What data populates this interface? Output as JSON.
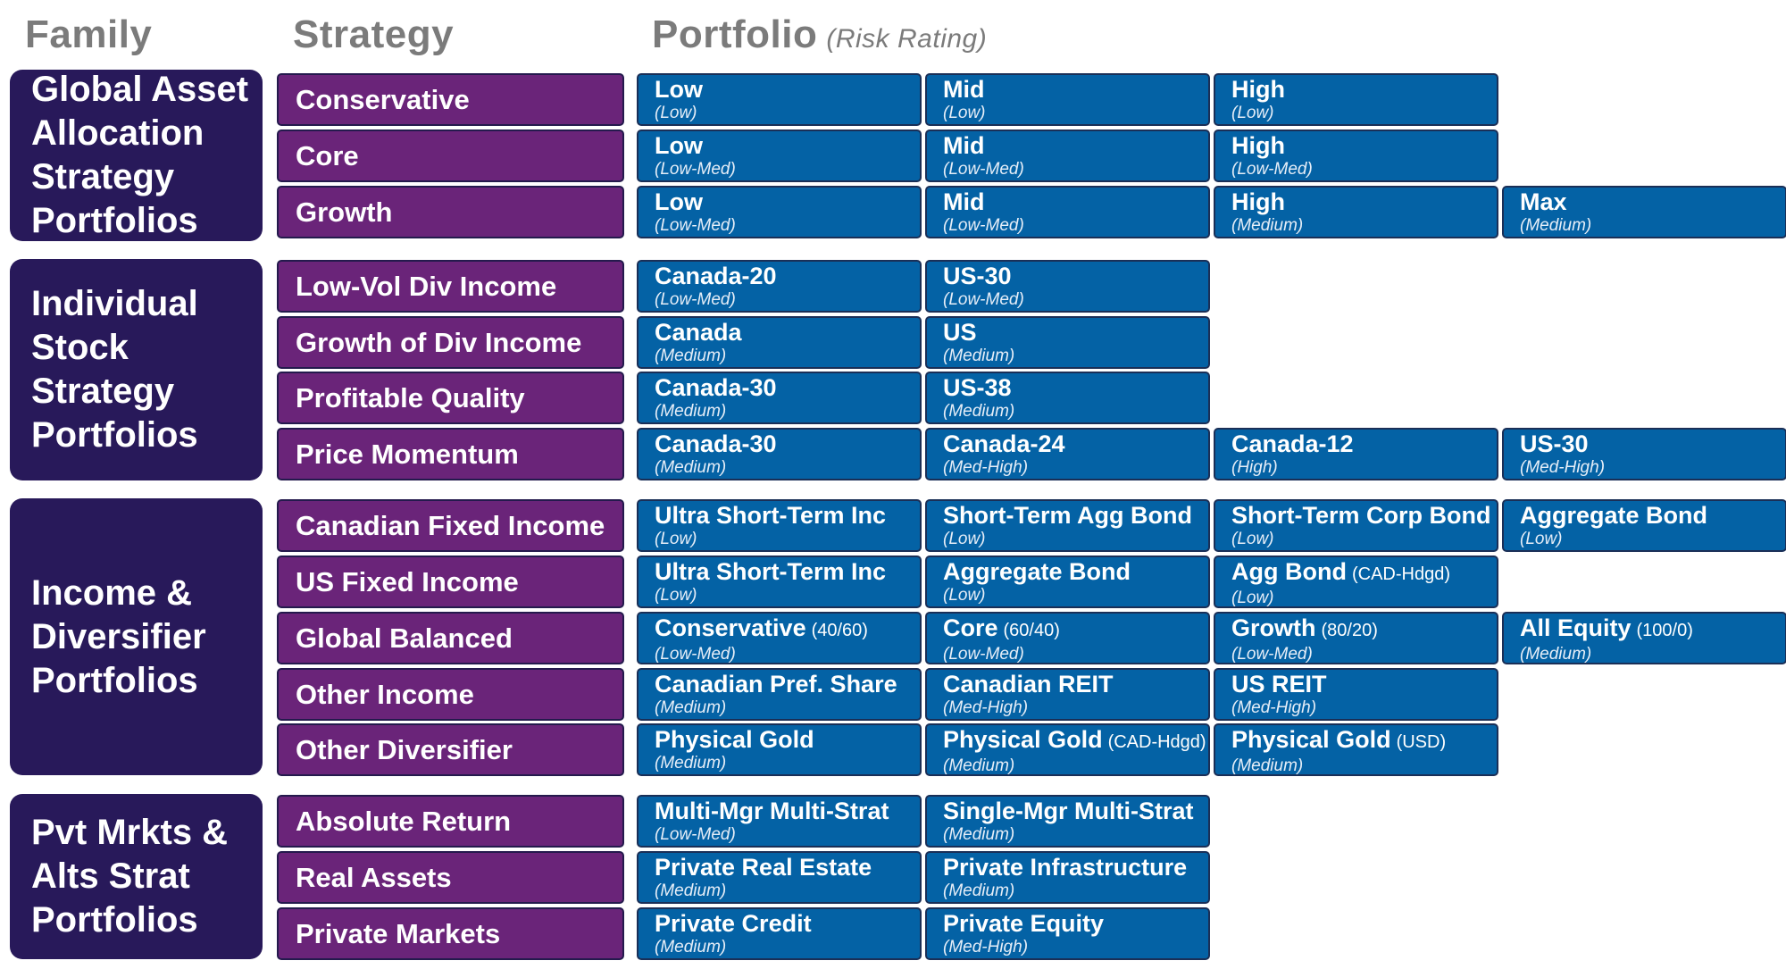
{
  "headers": {
    "family": "Family",
    "strategy": "Strategy",
    "portfolio": "Portfolio",
    "portfolio_sub": "(Risk Rating)"
  },
  "colors": {
    "family_bg": "#28195a",
    "strategy_bg": "#6a2479",
    "portfolio_bg": "#0462a5",
    "header_text": "#7b7b7b"
  },
  "families": [
    {
      "label": "Global Asset\nAllocation\nStrategy\nPortfolios",
      "strategies": [
        {
          "label": "Conservative",
          "portfolios": [
            {
              "name": "Low",
              "qual": "",
              "risk": "(Low)"
            },
            {
              "name": "Mid",
              "qual": "",
              "risk": "(Low)"
            },
            {
              "name": "High",
              "qual": "",
              "risk": "(Low)"
            }
          ]
        },
        {
          "label": "Core",
          "portfolios": [
            {
              "name": "Low",
              "qual": "",
              "risk": "(Low-Med)"
            },
            {
              "name": "Mid",
              "qual": "",
              "risk": "(Low-Med)"
            },
            {
              "name": "High",
              "qual": "",
              "risk": "(Low-Med)"
            }
          ]
        },
        {
          "label": "Growth",
          "portfolios": [
            {
              "name": "Low",
              "qual": "",
              "risk": "(Low-Med)"
            },
            {
              "name": "Mid",
              "qual": "",
              "risk": "(Low-Med)"
            },
            {
              "name": "High",
              "qual": "",
              "risk": "(Medium)"
            },
            {
              "name": "Max",
              "qual": "",
              "risk": "(Medium)"
            }
          ]
        }
      ]
    },
    {
      "label": "Individual\nStock\nStrategy\nPortfolios",
      "strategies": [
        {
          "label": "Low-Vol Div Income",
          "portfolios": [
            {
              "name": "Canada-20",
              "qual": "",
              "risk": "(Low-Med)"
            },
            {
              "name": "US-30",
              "qual": "",
              "risk": "(Low-Med)"
            }
          ]
        },
        {
          "label": "Growth of Div Income",
          "portfolios": [
            {
              "name": "Canada",
              "qual": "",
              "risk": "(Medium)"
            },
            {
              "name": "US",
              "qual": "",
              "risk": "(Medium)"
            }
          ]
        },
        {
          "label": "Profitable Quality",
          "portfolios": [
            {
              "name": "Canada-30",
              "qual": "",
              "risk": "(Medium)"
            },
            {
              "name": "US-38",
              "qual": "",
              "risk": "(Medium)"
            }
          ]
        },
        {
          "label": "Price Momentum",
          "portfolios": [
            {
              "name": "Canada-30",
              "qual": "",
              "risk": "(Medium)"
            },
            {
              "name": "Canada-24",
              "qual": "",
              "risk": "(Med-High)"
            },
            {
              "name": "Canada-12",
              "qual": "",
              "risk": "(High)"
            },
            {
              "name": "US-30",
              "qual": "",
              "risk": "(Med-High)"
            }
          ]
        }
      ]
    },
    {
      "label": "Income &\nDiversifier\nPortfolios",
      "strategies": [
        {
          "label": "Canadian Fixed Income",
          "portfolios": [
            {
              "name": "Ultra Short-Term Inc",
              "qual": "",
              "risk": "(Low)"
            },
            {
              "name": "Short-Term Agg Bond",
              "qual": "",
              "risk": "(Low)"
            },
            {
              "name": "Short-Term Corp Bond",
              "qual": "",
              "risk": "(Low)"
            },
            {
              "name": "Aggregate Bond",
              "qual": "",
              "risk": "(Low)"
            }
          ]
        },
        {
          "label": "US Fixed Income",
          "portfolios": [
            {
              "name": "Ultra Short-Term Inc",
              "qual": "",
              "risk": "(Low)"
            },
            {
              "name": "Aggregate Bond",
              "qual": "",
              "risk": "(Low)"
            },
            {
              "name": "Agg Bond",
              "qual": "(CAD-Hdgd)",
              "risk": "(Low)"
            }
          ]
        },
        {
          "label": "Global Balanced",
          "portfolios": [
            {
              "name": "Conservative",
              "qual": "(40/60)",
              "risk": "(Low-Med)"
            },
            {
              "name": "Core",
              "qual": "(60/40)",
              "risk": "(Low-Med)"
            },
            {
              "name": "Growth",
              "qual": "(80/20)",
              "risk": "(Low-Med)"
            },
            {
              "name": "All Equity",
              "qual": "(100/0)",
              "risk": "(Medium)"
            }
          ]
        },
        {
          "label": "Other Income",
          "portfolios": [
            {
              "name": "Canadian Pref. Share",
              "qual": "",
              "risk": "(Medium)"
            },
            {
              "name": "Canadian REIT",
              "qual": "",
              "risk": "(Med-High)"
            },
            {
              "name": "US REIT",
              "qual": "",
              "risk": "(Med-High)"
            }
          ]
        },
        {
          "label": "Other Diversifier",
          "portfolios": [
            {
              "name": "Physical Gold",
              "qual": "",
              "risk": "(Medium)"
            },
            {
              "name": "Physical Gold",
              "qual": "(CAD-Hdgd)",
              "risk": "(Medium)"
            },
            {
              "name": "Physical Gold",
              "qual": "(USD)",
              "risk": "(Medium)"
            }
          ]
        }
      ]
    },
    {
      "label": "Pvt Mrkts &\nAlts Strat\nPortfolios",
      "strategies": [
        {
          "label": "Absolute Return",
          "portfolios": [
            {
              "name": "Multi-Mgr Multi-Strat",
              "qual": "",
              "risk": "(Low-Med)"
            },
            {
              "name": "Single-Mgr Multi-Strat",
              "qual": "",
              "risk": "(Medium)"
            }
          ]
        },
        {
          "label": "Real Assets",
          "portfolios": [
            {
              "name": "Private Real Estate",
              "qual": "",
              "risk": "(Medium)"
            },
            {
              "name": "Private Infrastructure",
              "qual": "",
              "risk": "(Medium)"
            }
          ]
        },
        {
          "label": "Private Markets",
          "portfolios": [
            {
              "name": "Private Credit",
              "qual": "",
              "risk": "(Medium)"
            },
            {
              "name": "Private Equity",
              "qual": "",
              "risk": "(Med-High)"
            }
          ]
        }
      ]
    }
  ]
}
